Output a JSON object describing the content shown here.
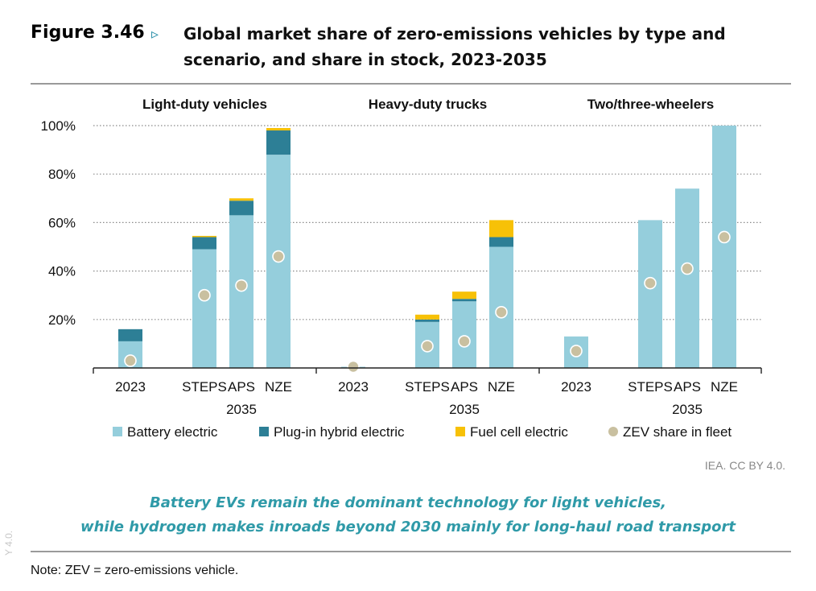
{
  "figure": {
    "label": "Figure 3.46",
    "arrow": "▹",
    "title": "Global market share of zero-emissions vehicles by type and scenario, and share in stock, 2023-2035"
  },
  "credit": "IEA. CC BY 4.0.",
  "takeaway": {
    "line1": "Battery EVs remain the dominant technology for light vehicles,",
    "line2": "while hydrogen makes inroads beyond 2030 mainly for long-haul road transport"
  },
  "note": "Note: ZEV = zero-emissions vehicle.",
  "edge_mark": "Y 4.0.",
  "colors": {
    "battery": "#95cedc",
    "phev": "#2d7f96",
    "fuelcell": "#f7c107",
    "fleet_dot": "#c9c0a0"
  },
  "chart_data": {
    "type": "bar",
    "stacked": true,
    "ylim": [
      0,
      100
    ],
    "yticks": [
      "20%",
      "40%",
      "60%",
      "80%",
      "100%"
    ],
    "ytick_values": [
      20,
      40,
      60,
      80,
      100
    ],
    "grid": true,
    "legend_position": "bottom",
    "groups": [
      {
        "title": "Light-duty vehicles",
        "categories": [
          "2023",
          "STEPS",
          "APS",
          "NZE"
        ],
        "year_label": "2035",
        "battery": [
          11,
          49,
          63,
          88
        ],
        "phev": [
          5,
          5,
          6,
          10
        ],
        "fuelcell": [
          0,
          0.5,
          1,
          1
        ],
        "fleet_share": [
          3,
          30,
          34,
          46
        ]
      },
      {
        "title": "Heavy-duty trucks",
        "categories": [
          "2023",
          "STEPS",
          "APS",
          "NZE"
        ],
        "year_label": "2035",
        "battery": [
          0.5,
          19,
          27.5,
          50
        ],
        "phev": [
          0,
          1,
          1,
          4
        ],
        "fuelcell": [
          0,
          2,
          3,
          7
        ],
        "fleet_share": [
          0.5,
          9,
          11,
          23
        ]
      },
      {
        "title": "Two/three-wheelers",
        "categories": [
          "2023",
          "STEPS",
          "APS",
          "NZE"
        ],
        "year_label": "2035",
        "battery": [
          13,
          61,
          74,
          100
        ],
        "phev": [
          0,
          0,
          0,
          0
        ],
        "fuelcell": [
          0,
          0,
          0,
          0
        ],
        "fleet_share": [
          7,
          35,
          41,
          54
        ]
      }
    ],
    "series": [
      {
        "name": "Battery electric",
        "key": "battery",
        "marker": "square"
      },
      {
        "name": "Plug-in hybrid electric",
        "key": "phev",
        "marker": "square"
      },
      {
        "name": "Fuel cell electric",
        "key": "fuelcell",
        "marker": "square"
      },
      {
        "name": "ZEV share in fleet",
        "key": "fleet_share",
        "marker": "dot"
      }
    ]
  }
}
